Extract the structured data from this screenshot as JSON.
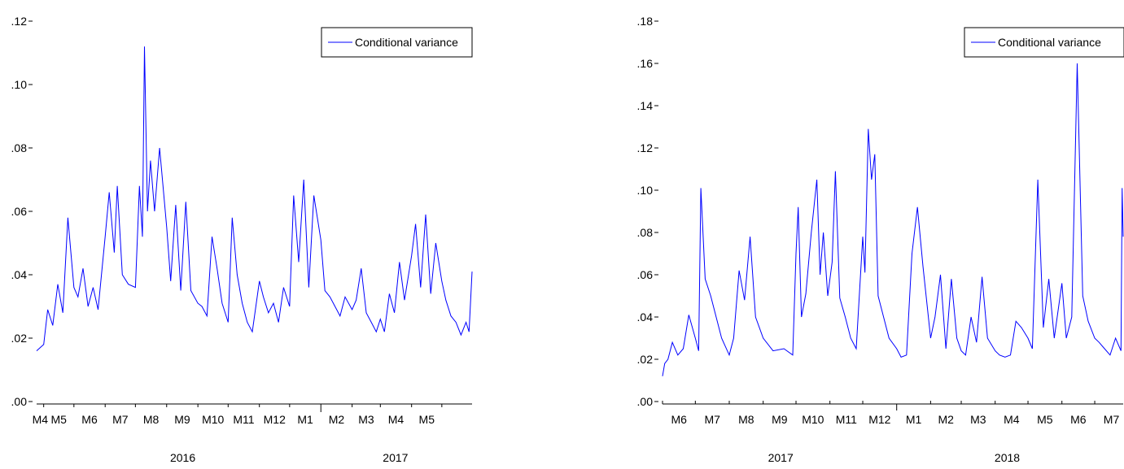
{
  "chart_data": [
    {
      "type": "line",
      "legend": "Conditional variance",
      "legend_position": "top-right",
      "grid": false,
      "ylim": [
        0,
        0.12
      ],
      "y_ticks": [
        ".00",
        ".02",
        ".04",
        ".06",
        ".08",
        ".10",
        ".12"
      ],
      "month_labels": [
        "M4",
        "M5",
        "M6",
        "M7",
        "M8",
        "M9",
        "M10",
        "M11",
        "M12",
        "M1",
        "M2",
        "M3",
        "M4",
        "M5"
      ],
      "year_labels": [
        "2016",
        "2017"
      ],
      "x": [
        "2016-03-25",
        "2016-04-01",
        "2016-04-05",
        "2016-04-10",
        "2016-04-15",
        "2016-04-20",
        "2016-04-25",
        "2016-05-01",
        "2016-05-05",
        "2016-05-10",
        "2016-05-15",
        "2016-05-20",
        "2016-05-25",
        "2016-06-01",
        "2016-06-05",
        "2016-06-10",
        "2016-06-13",
        "2016-06-18",
        "2016-06-24",
        "2016-07-01",
        "2016-07-05",
        "2016-07-08",
        "2016-07-10",
        "2016-07-13",
        "2016-07-16",
        "2016-07-20",
        "2016-07-25",
        "2016-08-01",
        "2016-08-05",
        "2016-08-10",
        "2016-08-15",
        "2016-08-20",
        "2016-08-25",
        "2016-09-01",
        "2016-09-05",
        "2016-09-10",
        "2016-09-15",
        "2016-09-20",
        "2016-09-25",
        "2016-10-01",
        "2016-10-05",
        "2016-10-10",
        "2016-10-15",
        "2016-10-20",
        "2016-10-25",
        "2016-11-01",
        "2016-11-05",
        "2016-11-10",
        "2016-11-15",
        "2016-11-20",
        "2016-11-25",
        "2016-12-01",
        "2016-12-05",
        "2016-12-10",
        "2016-12-15",
        "2016-12-20",
        "2016-12-25",
        "2017-01-01",
        "2017-01-05",
        "2017-01-10",
        "2017-01-15",
        "2017-01-20",
        "2017-01-25",
        "2017-02-01",
        "2017-02-05",
        "2017-02-10",
        "2017-02-15",
        "2017-02-20",
        "2017-02-25",
        "2017-03-01",
        "2017-03-05",
        "2017-03-10",
        "2017-03-15",
        "2017-03-20",
        "2017-03-25",
        "2017-04-01",
        "2017-04-05",
        "2017-04-10",
        "2017-04-15",
        "2017-04-20",
        "2017-04-25",
        "2017-05-01",
        "2017-05-05",
        "2017-05-10",
        "2017-05-15",
        "2017-05-20",
        "2017-05-25",
        "2017-05-28",
        "2017-05-31"
      ],
      "y": [
        0.016,
        0.018,
        0.029,
        0.024,
        0.037,
        0.028,
        0.058,
        0.036,
        0.033,
        0.042,
        0.03,
        0.036,
        0.029,
        0.052,
        0.066,
        0.047,
        0.068,
        0.04,
        0.037,
        0.036,
        0.068,
        0.052,
        0.112,
        0.06,
        0.076,
        0.06,
        0.08,
        0.055,
        0.038,
        0.062,
        0.035,
        0.063,
        0.035,
        0.031,
        0.03,
        0.027,
        0.052,
        0.042,
        0.031,
        0.025,
        0.058,
        0.04,
        0.031,
        0.025,
        0.022,
        0.038,
        0.033,
        0.028,
        0.031,
        0.025,
        0.036,
        0.03,
        0.065,
        0.044,
        0.07,
        0.036,
        0.065,
        0.051,
        0.035,
        0.033,
        0.03,
        0.027,
        0.033,
        0.029,
        0.032,
        0.042,
        0.028,
        0.025,
        0.022,
        0.026,
        0.022,
        0.034,
        0.028,
        0.044,
        0.032,
        0.046,
        0.056,
        0.036,
        0.059,
        0.034,
        0.05,
        0.038,
        0.032,
        0.027,
        0.025,
        0.021,
        0.025,
        0.022,
        0.041
      ]
    },
    {
      "type": "line",
      "legend": "Conditional variance",
      "legend_position": "top-right",
      "grid": false,
      "ylim": [
        0,
        0.18
      ],
      "y_ticks": [
        ".00",
        ".02",
        ".04",
        ".06",
        ".08",
        ".10",
        ".12",
        ".14",
        ".16",
        ".18"
      ],
      "month_labels": [
        "M6",
        "M7",
        "M8",
        "M9",
        "M10",
        "M11",
        "M12",
        "M1",
        "M2",
        "M3",
        "M4",
        "M5",
        "M6",
        "M7"
      ],
      "year_labels": [
        "2017",
        "2018"
      ],
      "x": [
        "2017-06-01",
        "2017-06-03",
        "2017-06-06",
        "2017-06-10",
        "2017-06-15",
        "2017-06-20",
        "2017-06-25",
        "2017-07-01",
        "2017-07-04",
        "2017-07-06",
        "2017-07-10",
        "2017-07-15",
        "2017-07-20",
        "2017-07-25",
        "2017-08-01",
        "2017-08-05",
        "2017-08-10",
        "2017-08-15",
        "2017-08-20",
        "2017-08-25",
        "2017-09-01",
        "2017-09-10",
        "2017-09-20",
        "2017-09-28",
        "2017-10-01",
        "2017-10-03",
        "2017-10-06",
        "2017-10-10",
        "2017-10-15",
        "2017-10-20",
        "2017-10-23",
        "2017-10-26",
        "2017-10-30",
        "2017-11-03",
        "2017-11-06",
        "2017-11-10",
        "2017-11-15",
        "2017-11-20",
        "2017-11-25",
        "2017-12-01",
        "2017-12-03",
        "2017-12-06",
        "2017-12-09",
        "2017-12-12",
        "2017-12-15",
        "2017-12-20",
        "2017-12-25",
        "2018-01-01",
        "2018-01-05",
        "2018-01-10",
        "2018-01-15",
        "2018-01-20",
        "2018-01-25",
        "2018-02-01",
        "2018-02-05",
        "2018-02-10",
        "2018-02-15",
        "2018-02-20",
        "2018-02-25",
        "2018-03-01",
        "2018-03-05",
        "2018-03-10",
        "2018-03-15",
        "2018-03-20",
        "2018-03-25",
        "2018-04-01",
        "2018-04-05",
        "2018-04-10",
        "2018-04-15",
        "2018-04-20",
        "2018-04-25",
        "2018-05-01",
        "2018-05-05",
        "2018-05-10",
        "2018-05-15",
        "2018-05-20",
        "2018-05-25",
        "2018-06-01",
        "2018-06-05",
        "2018-06-10",
        "2018-06-15",
        "2018-06-20",
        "2018-06-25",
        "2018-07-01",
        "2018-07-05",
        "2018-07-10",
        "2018-07-15",
        "2018-07-20",
        "2018-07-25",
        "2018-07-26",
        "2018-07-27"
      ],
      "y": [
        0.012,
        0.018,
        0.02,
        0.028,
        0.022,
        0.025,
        0.041,
        0.03,
        0.024,
        0.101,
        0.058,
        0.05,
        0.04,
        0.03,
        0.022,
        0.03,
        0.062,
        0.048,
        0.078,
        0.04,
        0.03,
        0.024,
        0.025,
        0.022,
        0.07,
        0.092,
        0.04,
        0.051,
        0.08,
        0.105,
        0.06,
        0.08,
        0.05,
        0.066,
        0.109,
        0.049,
        0.04,
        0.03,
        0.025,
        0.078,
        0.061,
        0.129,
        0.105,
        0.117,
        0.05,
        0.04,
        0.03,
        0.025,
        0.021,
        0.022,
        0.07,
        0.092,
        0.064,
        0.03,
        0.04,
        0.06,
        0.025,
        0.058,
        0.03,
        0.024,
        0.022,
        0.04,
        0.028,
        0.059,
        0.03,
        0.024,
        0.022,
        0.021,
        0.022,
        0.038,
        0.035,
        0.03,
        0.025,
        0.105,
        0.035,
        0.058,
        0.03,
        0.056,
        0.03,
        0.04,
        0.16,
        0.05,
        0.038,
        0.03,
        0.028,
        0.025,
        0.022,
        0.03,
        0.024,
        0.101,
        0.078
      ]
    }
  ]
}
